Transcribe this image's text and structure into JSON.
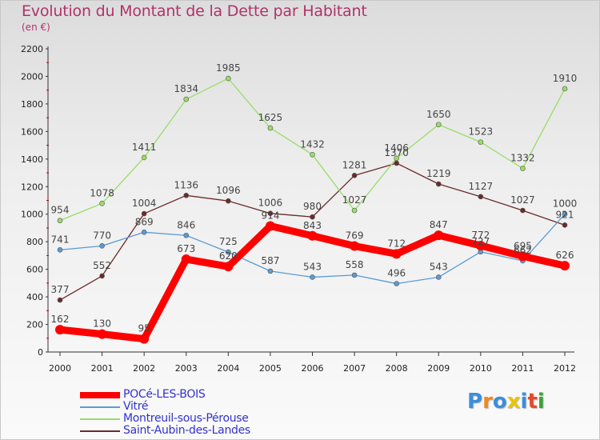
{
  "chart_data": {
    "type": "line",
    "title": "Evolution du Montant de la Dette par Habitant",
    "subtitle": "(en €)",
    "x": [
      "2000",
      "2001",
      "2002",
      "2003",
      "2004",
      "2005",
      "2006",
      "2007",
      "2008",
      "2009",
      "2010",
      "2011",
      "2012"
    ],
    "ylim": [
      0,
      2200
    ],
    "yticks": [
      0,
      200,
      400,
      600,
      800,
      1000,
      1200,
      1400,
      1600,
      1800,
      2000,
      2200
    ],
    "grid": false,
    "legend_position": "bottom-left",
    "series": [
      {
        "name": "POCé-LES-BOIS",
        "color": "#ff0000",
        "values": [
          162,
          130,
          95,
          673,
          620,
          914,
          843,
          769,
          712,
          847,
          772,
          695,
          626
        ]
      },
      {
        "name": "Vitré",
        "color": "#5a9bd4",
        "values": [
          741,
          770,
          869,
          846,
          725,
          587,
          543,
          558,
          496,
          543,
          727,
          662,
          1000
        ]
      },
      {
        "name": "Montreuil-sous-Pérouse",
        "color": "#99dd66",
        "values": [
          954,
          1078,
          1411,
          1834,
          1985,
          1625,
          1432,
          1027,
          1406,
          1650,
          1523,
          1332,
          1910
        ]
      },
      {
        "name": "Saint-Aubin-des-Landes",
        "color": "#6b2a2a",
        "values": [
          377,
          552,
          1004,
          1136,
          1096,
          1006,
          980,
          1281,
          1370,
          1219,
          1127,
          1027,
          921
        ]
      }
    ]
  },
  "logo": {
    "text": "Proxiti",
    "colors": [
      "#3a8fd9",
      "#f08a1c",
      "#3a8fd9",
      "#e9c400",
      "#3a8fd9",
      "#e04b2b",
      "#3aa13a"
    ]
  }
}
